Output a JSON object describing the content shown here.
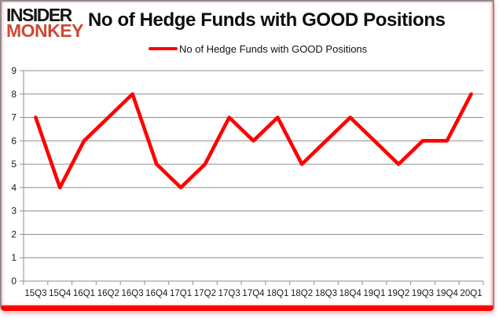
{
  "logo": {
    "line1": "INSIDER",
    "line2": "MONKEY"
  },
  "header": {
    "title": "No of Hedge Funds with GOOD Positions"
  },
  "legend": {
    "label": "No of Hedge Funds with GOOD Positions"
  },
  "colors": {
    "series": "#FF0000",
    "logo_accent": "#CB4A36",
    "logo_dark": "#161413",
    "gridline": "#8E8E8E",
    "axis_text": "#1A1A1A",
    "frame_border": "#8D8D8D",
    "bottom_bar": "#FE0000"
  },
  "chart_data": {
    "type": "line",
    "title": "No of Hedge Funds with GOOD Positions",
    "categories": [
      "15Q3",
      "15Q4",
      "16Q1",
      "16Q2",
      "16Q3",
      "16Q4",
      "17Q1",
      "17Q2",
      "17Q3",
      "17Q4",
      "18Q1",
      "18Q2",
      "18Q3",
      "18Q4",
      "19Q1",
      "19Q2",
      "19Q3",
      "19Q4",
      "20Q1"
    ],
    "series": [
      {
        "name": "No of Hedge Funds with GOOD Positions",
        "values": [
          7,
          4,
          6,
          7,
          8,
          5,
          4,
          5,
          7,
          6,
          7,
          5,
          6,
          7,
          6,
          5,
          6,
          6,
          8
        ]
      }
    ],
    "xlabel": "",
    "ylabel": "",
    "ylim": [
      0,
      9
    ],
    "ytick_step": 1,
    "grid": true,
    "legend_position": "top"
  }
}
